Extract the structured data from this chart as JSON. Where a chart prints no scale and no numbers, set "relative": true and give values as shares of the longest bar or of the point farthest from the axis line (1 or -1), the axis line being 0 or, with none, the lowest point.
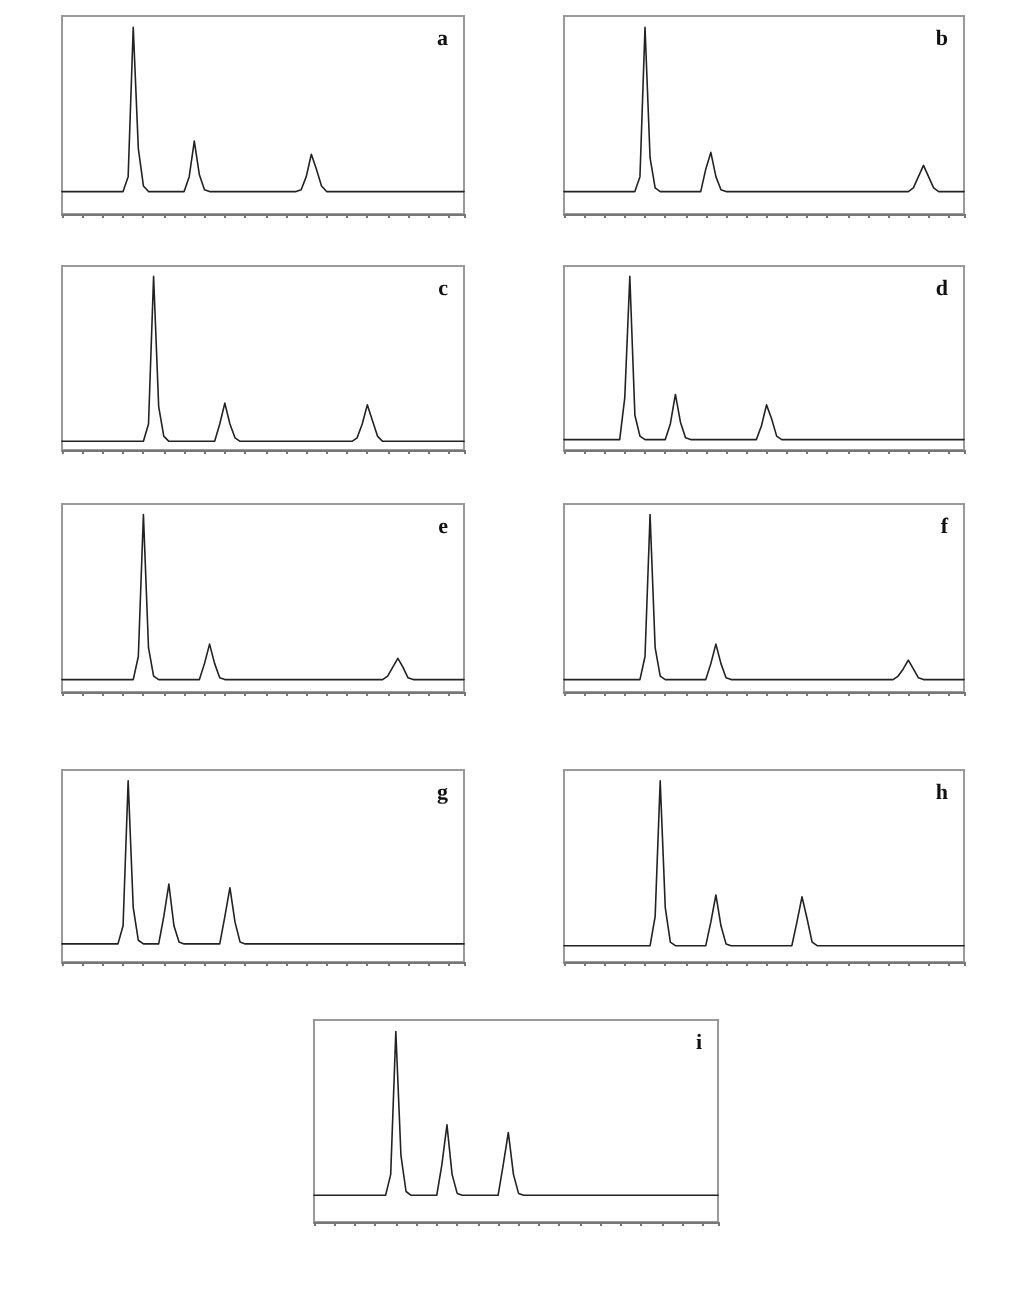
{
  "chart_data": [
    {
      "type": "line",
      "title": "a",
      "relative": true,
      "color": "#222222",
      "categories": [
        null,
        null,
        null,
        null,
        null,
        null,
        null,
        null,
        null,
        null,
        null,
        null,
        null,
        null,
        null,
        null,
        null,
        null,
        null,
        null,
        null,
        null,
        null,
        null,
        null,
        null,
        null,
        null,
        null,
        null,
        null,
        null,
        null,
        null,
        null,
        null,
        null,
        null,
        null,
        null,
        null,
        null,
        null,
        null,
        null,
        null,
        null,
        null,
        null,
        null,
        null,
        null,
        null,
        null,
        null,
        null,
        null,
        null,
        null,
        null,
        null,
        null,
        null,
        null,
        null,
        null,
        null,
        null,
        null,
        null,
        null,
        null,
        null,
        null,
        null,
        null,
        null,
        null,
        null,
        null
      ],
      "values": [
        0.12,
        0.12,
        0.12,
        0.12,
        0.12,
        0.12,
        0.12,
        0.12,
        0.12,
        0.12,
        0.12,
        0.12,
        0.12,
        0.2,
        1,
        0.35,
        0.15,
        0.12,
        0.12,
        0.12,
        0.12,
        0.12,
        0.12,
        0.12,
        0.12,
        0.2,
        0.39,
        0.21,
        0.13,
        0.12,
        0.12,
        0.12,
        0.12,
        0.12,
        0.12,
        0.12,
        0.12,
        0.12,
        0.12,
        0.12,
        0.12,
        0.12,
        0.12,
        0.12,
        0.12,
        0.12,
        0.12,
        0.13,
        0.2,
        0.32,
        0.24,
        0.15,
        0.12,
        0.12,
        0.12,
        0.12,
        0.12,
        0.12,
        0.12,
        0.12,
        0.12,
        0.12,
        0.12,
        0.12,
        0.12,
        0.12,
        0.12,
        0.12,
        0.12,
        0.12,
        0.12,
        0.12,
        0.12,
        0.12,
        0.12,
        0.12,
        0.12,
        0.12,
        0.12,
        0.12
      ]
    },
    {
      "type": "line",
      "title": "b",
      "relative": true,
      "color": "#222222",
      "categories": [
        null,
        null,
        null,
        null,
        null,
        null,
        null,
        null,
        null,
        null,
        null,
        null,
        null,
        null,
        null,
        null,
        null,
        null,
        null,
        null,
        null,
        null,
        null,
        null,
        null,
        null,
        null,
        null,
        null,
        null,
        null,
        null,
        null,
        null,
        null,
        null,
        null,
        null,
        null,
        null,
        null,
        null,
        null,
        null,
        null,
        null,
        null,
        null,
        null,
        null,
        null,
        null,
        null,
        null,
        null,
        null,
        null,
        null,
        null,
        null,
        null,
        null,
        null,
        null,
        null,
        null,
        null,
        null,
        null,
        null,
        null,
        null,
        null,
        null,
        null,
        null,
        null,
        null,
        null,
        null
      ],
      "values": [
        0.12,
        0.12,
        0.12,
        0.12,
        0.12,
        0.12,
        0.12,
        0.12,
        0.12,
        0.12,
        0.12,
        0.12,
        0.12,
        0.12,
        0.12,
        0.2,
        1,
        0.3,
        0.14,
        0.12,
        0.12,
        0.12,
        0.12,
        0.12,
        0.12,
        0.12,
        0.12,
        0.12,
        0.24,
        0.33,
        0.2,
        0.13,
        0.12,
        0.12,
        0.12,
        0.12,
        0.12,
        0.12,
        0.12,
        0.12,
        0.12,
        0.12,
        0.12,
        0.12,
        0.12,
        0.12,
        0.12,
        0.12,
        0.12,
        0.12,
        0.12,
        0.12,
        0.12,
        0.12,
        0.12,
        0.12,
        0.12,
        0.12,
        0.12,
        0.12,
        0.12,
        0.12,
        0.12,
        0.12,
        0.12,
        0.12,
        0.12,
        0.12,
        0.12,
        0.14,
        0.2,
        0.26,
        0.2,
        0.14,
        0.12,
        0.12,
        0.12,
        0.12,
        0.12,
        0.12
      ]
    },
    {
      "type": "line",
      "title": "c",
      "relative": true,
      "color": "#222222",
      "categories": [
        null,
        null,
        null,
        null,
        null,
        null,
        null,
        null,
        null,
        null,
        null,
        null,
        null,
        null,
        null,
        null,
        null,
        null,
        null,
        null,
        null,
        null,
        null,
        null,
        null,
        null,
        null,
        null,
        null,
        null,
        null,
        null,
        null,
        null,
        null,
        null,
        null,
        null,
        null,
        null,
        null,
        null,
        null,
        null,
        null,
        null,
        null,
        null,
        null,
        null,
        null,
        null,
        null,
        null,
        null,
        null,
        null,
        null,
        null,
        null,
        null,
        null,
        null,
        null,
        null,
        null,
        null,
        null,
        null,
        null,
        null,
        null,
        null,
        null,
        null,
        null,
        null,
        null,
        null,
        null
      ],
      "values": [
        0.05,
        0.05,
        0.05,
        0.05,
        0.05,
        0.05,
        0.05,
        0.05,
        0.05,
        0.05,
        0.05,
        0.05,
        0.05,
        0.05,
        0.05,
        0.05,
        0.05,
        0.15,
        1,
        0.25,
        0.08,
        0.05,
        0.05,
        0.05,
        0.05,
        0.05,
        0.05,
        0.05,
        0.05,
        0.05,
        0.05,
        0.15,
        0.27,
        0.15,
        0.07,
        0.05,
        0.05,
        0.05,
        0.05,
        0.05,
        0.05,
        0.05,
        0.05,
        0.05,
        0.05,
        0.05,
        0.05,
        0.05,
        0.05,
        0.05,
        0.05,
        0.05,
        0.05,
        0.05,
        0.05,
        0.05,
        0.05,
        0.05,
        0.07,
        0.15,
        0.26,
        0.17,
        0.08,
        0.05,
        0.05,
        0.05,
        0.05,
        0.05,
        0.05,
        0.05,
        0.05,
        0.05,
        0.05,
        0.05,
        0.05,
        0.05,
        0.05,
        0.05,
        0.05,
        0.05
      ]
    },
    {
      "type": "line",
      "title": "d",
      "relative": true,
      "color": "#222222",
      "categories": [
        null,
        null,
        null,
        null,
        null,
        null,
        null,
        null,
        null,
        null,
        null,
        null,
        null,
        null,
        null,
        null,
        null,
        null,
        null,
        null,
        null,
        null,
        null,
        null,
        null,
        null,
        null,
        null,
        null,
        null,
        null,
        null,
        null,
        null,
        null,
        null,
        null,
        null,
        null,
        null,
        null,
        null,
        null,
        null,
        null,
        null,
        null,
        null,
        null,
        null,
        null,
        null,
        null,
        null,
        null,
        null,
        null,
        null,
        null,
        null,
        null,
        null,
        null,
        null,
        null,
        null,
        null,
        null,
        null,
        null,
        null,
        null,
        null,
        null,
        null,
        null,
        null,
        null,
        null,
        null
      ],
      "values": [
        0.06,
        0.06,
        0.06,
        0.06,
        0.06,
        0.06,
        0.06,
        0.06,
        0.06,
        0.06,
        0.06,
        0.06,
        0.3,
        1,
        0.2,
        0.08,
        0.06,
        0.06,
        0.06,
        0.06,
        0.06,
        0.15,
        0.32,
        0.16,
        0.07,
        0.06,
        0.06,
        0.06,
        0.06,
        0.06,
        0.06,
        0.06,
        0.06,
        0.06,
        0.06,
        0.06,
        0.06,
        0.06,
        0.06,
        0.14,
        0.26,
        0.18,
        0.08,
        0.06,
        0.06,
        0.06,
        0.06,
        0.06,
        0.06,
        0.06,
        0.06,
        0.06,
        0.06,
        0.06,
        0.06,
        0.06,
        0.06,
        0.06,
        0.06,
        0.06,
        0.06,
        0.06,
        0.06,
        0.06,
        0.06,
        0.06,
        0.06,
        0.06,
        0.06,
        0.06,
        0.06,
        0.06,
        0.06,
        0.06,
        0.06,
        0.06,
        0.06,
        0.06,
        0.06,
        0.06
      ]
    },
    {
      "type": "line",
      "title": "e",
      "relative": true,
      "color": "#222222",
      "categories": [
        null,
        null,
        null,
        null,
        null,
        null,
        null,
        null,
        null,
        null,
        null,
        null,
        null,
        null,
        null,
        null,
        null,
        null,
        null,
        null,
        null,
        null,
        null,
        null,
        null,
        null,
        null,
        null,
        null,
        null,
        null,
        null,
        null,
        null,
        null,
        null,
        null,
        null,
        null,
        null,
        null,
        null,
        null,
        null,
        null,
        null,
        null,
        null,
        null,
        null,
        null,
        null,
        null,
        null,
        null,
        null,
        null,
        null,
        null,
        null,
        null,
        null,
        null,
        null,
        null,
        null,
        null,
        null,
        null,
        null,
        null,
        null,
        null,
        null,
        null,
        null,
        null,
        null,
        null,
        null
      ],
      "values": [
        0.07,
        0.07,
        0.07,
        0.07,
        0.07,
        0.07,
        0.07,
        0.07,
        0.07,
        0.07,
        0.07,
        0.07,
        0.07,
        0.07,
        0.07,
        0.2,
        1,
        0.25,
        0.09,
        0.07,
        0.07,
        0.07,
        0.07,
        0.07,
        0.07,
        0.07,
        0.07,
        0.07,
        0.16,
        0.27,
        0.16,
        0.08,
        0.07,
        0.07,
        0.07,
        0.07,
        0.07,
        0.07,
        0.07,
        0.07,
        0.07,
        0.07,
        0.07,
        0.07,
        0.07,
        0.07,
        0.07,
        0.07,
        0.07,
        0.07,
        0.07,
        0.07,
        0.07,
        0.07,
        0.07,
        0.07,
        0.07,
        0.07,
        0.07,
        0.07,
        0.07,
        0.07,
        0.07,
        0.07,
        0.09,
        0.14,
        0.19,
        0.14,
        0.08,
        0.07,
        0.07,
        0.07,
        0.07,
        0.07,
        0.07,
        0.07,
        0.07,
        0.07,
        0.07,
        0.07
      ]
    },
    {
      "type": "line",
      "title": "f",
      "relative": true,
      "color": "#222222",
      "categories": [
        null,
        null,
        null,
        null,
        null,
        null,
        null,
        null,
        null,
        null,
        null,
        null,
        null,
        null,
        null,
        null,
        null,
        null,
        null,
        null,
        null,
        null,
        null,
        null,
        null,
        null,
        null,
        null,
        null,
        null,
        null,
        null,
        null,
        null,
        null,
        null,
        null,
        null,
        null,
        null,
        null,
        null,
        null,
        null,
        null,
        null,
        null,
        null,
        null,
        null,
        null,
        null,
        null,
        null,
        null,
        null,
        null,
        null,
        null,
        null,
        null,
        null,
        null,
        null,
        null,
        null,
        null,
        null,
        null,
        null,
        null,
        null,
        null,
        null,
        null,
        null,
        null,
        null,
        null,
        null
      ],
      "values": [
        0.07,
        0.07,
        0.07,
        0.07,
        0.07,
        0.07,
        0.07,
        0.07,
        0.07,
        0.07,
        0.07,
        0.07,
        0.07,
        0.07,
        0.07,
        0.07,
        0.2,
        1,
        0.25,
        0.09,
        0.07,
        0.07,
        0.07,
        0.07,
        0.07,
        0.07,
        0.07,
        0.07,
        0.07,
        0.16,
        0.27,
        0.16,
        0.08,
        0.07,
        0.07,
        0.07,
        0.07,
        0.07,
        0.07,
        0.07,
        0.07,
        0.07,
        0.07,
        0.07,
        0.07,
        0.07,
        0.07,
        0.07,
        0.07,
        0.07,
        0.07,
        0.07,
        0.07,
        0.07,
        0.07,
        0.07,
        0.07,
        0.07,
        0.07,
        0.07,
        0.07,
        0.07,
        0.07,
        0.07,
        0.07,
        0.07,
        0.09,
        0.13,
        0.18,
        0.13,
        0.08,
        0.07,
        0.07,
        0.07,
        0.07,
        0.07,
        0.07,
        0.07,
        0.07,
        0.07
      ]
    },
    {
      "type": "line",
      "title": "g",
      "relative": true,
      "color": "#222222",
      "categories": [
        null,
        null,
        null,
        null,
        null,
        null,
        null,
        null,
        null,
        null,
        null,
        null,
        null,
        null,
        null,
        null,
        null,
        null,
        null,
        null,
        null,
        null,
        null,
        null,
        null,
        null,
        null,
        null,
        null,
        null,
        null,
        null,
        null,
        null,
        null,
        null,
        null,
        null,
        null,
        null,
        null,
        null,
        null,
        null,
        null,
        null,
        null,
        null,
        null,
        null,
        null,
        null,
        null,
        null,
        null,
        null,
        null,
        null,
        null,
        null,
        null,
        null,
        null,
        null,
        null,
        null,
        null,
        null,
        null,
        null,
        null,
        null,
        null,
        null,
        null,
        null,
        null,
        null,
        null,
        null
      ],
      "values": [
        0.1,
        0.1,
        0.1,
        0.1,
        0.1,
        0.1,
        0.1,
        0.1,
        0.1,
        0.1,
        0.1,
        0.1,
        0.2,
        1,
        0.3,
        0.12,
        0.1,
        0.1,
        0.1,
        0.1,
        0.25,
        0.43,
        0.2,
        0.11,
        0.1,
        0.1,
        0.1,
        0.1,
        0.1,
        0.1,
        0.1,
        0.1,
        0.25,
        0.41,
        0.22,
        0.11,
        0.1,
        0.1,
        0.1,
        0.1,
        0.1,
        0.1,
        0.1,
        0.1,
        0.1,
        0.1,
        0.1,
        0.1,
        0.1,
        0.1,
        0.1,
        0.1,
        0.1,
        0.1,
        0.1,
        0.1,
        0.1,
        0.1,
        0.1,
        0.1,
        0.1,
        0.1,
        0.1,
        0.1,
        0.1,
        0.1,
        0.1,
        0.1,
        0.1,
        0.1,
        0.1,
        0.1,
        0.1,
        0.1,
        0.1,
        0.1,
        0.1,
        0.1,
        0.1,
        0.1
      ]
    },
    {
      "type": "line",
      "title": "h",
      "relative": true,
      "color": "#222222",
      "categories": [
        null,
        null,
        null,
        null,
        null,
        null,
        null,
        null,
        null,
        null,
        null,
        null,
        null,
        null,
        null,
        null,
        null,
        null,
        null,
        null,
        null,
        null,
        null,
        null,
        null,
        null,
        null,
        null,
        null,
        null,
        null,
        null,
        null,
        null,
        null,
        null,
        null,
        null,
        null,
        null,
        null,
        null,
        null,
        null,
        null,
        null,
        null,
        null,
        null,
        null,
        null,
        null,
        null,
        null,
        null,
        null,
        null,
        null,
        null,
        null,
        null,
        null,
        null,
        null,
        null,
        null,
        null,
        null,
        null,
        null,
        null,
        null,
        null,
        null,
        null,
        null,
        null,
        null,
        null,
        null
      ],
      "values": [
        0.09,
        0.09,
        0.09,
        0.09,
        0.09,
        0.09,
        0.09,
        0.09,
        0.09,
        0.09,
        0.09,
        0.09,
        0.09,
        0.09,
        0.09,
        0.09,
        0.09,
        0.09,
        0.25,
        1,
        0.3,
        0.11,
        0.09,
        0.09,
        0.09,
        0.09,
        0.09,
        0.09,
        0.09,
        0.22,
        0.37,
        0.2,
        0.1,
        0.09,
        0.09,
        0.09,
        0.09,
        0.09,
        0.09,
        0.09,
        0.09,
        0.09,
        0.09,
        0.09,
        0.09,
        0.09,
        0.22,
        0.36,
        0.24,
        0.11,
        0.09,
        0.09,
        0.09,
        0.09,
        0.09,
        0.09,
        0.09,
        0.09,
        0.09,
        0.09,
        0.09,
        0.09,
        0.09,
        0.09,
        0.09,
        0.09,
        0.09,
        0.09,
        0.09,
        0.09,
        0.09,
        0.09,
        0.09,
        0.09,
        0.09,
        0.09,
        0.09,
        0.09,
        0.09,
        0.09
      ]
    },
    {
      "type": "line",
      "title": "i",
      "relative": true,
      "color": "#222222",
      "categories": [
        null,
        null,
        null,
        null,
        null,
        null,
        null,
        null,
        null,
        null,
        null,
        null,
        null,
        null,
        null,
        null,
        null,
        null,
        null,
        null,
        null,
        null,
        null,
        null,
        null,
        null,
        null,
        null,
        null,
        null,
        null,
        null,
        null,
        null,
        null,
        null,
        null,
        null,
        null,
        null,
        null,
        null,
        null,
        null,
        null,
        null,
        null,
        null,
        null,
        null,
        null,
        null,
        null,
        null,
        null,
        null,
        null,
        null,
        null,
        null,
        null,
        null,
        null,
        null,
        null,
        null,
        null,
        null,
        null,
        null,
        null,
        null,
        null,
        null,
        null,
        null,
        null,
        null,
        null,
        null
      ],
      "values": [
        0.14,
        0.14,
        0.14,
        0.14,
        0.14,
        0.14,
        0.14,
        0.14,
        0.14,
        0.14,
        0.14,
        0.14,
        0.14,
        0.14,
        0.14,
        0.25,
        1,
        0.35,
        0.16,
        0.14,
        0.14,
        0.14,
        0.14,
        0.14,
        0.14,
        0.3,
        0.51,
        0.25,
        0.15,
        0.14,
        0.14,
        0.14,
        0.14,
        0.14,
        0.14,
        0.14,
        0.14,
        0.3,
        0.47,
        0.25,
        0.15,
        0.14,
        0.14,
        0.14,
        0.14,
        0.14,
        0.14,
        0.14,
        0.14,
        0.14,
        0.14,
        0.14,
        0.14,
        0.14,
        0.14,
        0.14,
        0.14,
        0.14,
        0.14,
        0.14,
        0.14,
        0.14,
        0.14,
        0.14,
        0.14,
        0.14,
        0.14,
        0.14,
        0.14,
        0.14,
        0.14,
        0.14,
        0.14,
        0.14,
        0.14,
        0.14,
        0.14,
        0.14,
        0.14,
        0.14
      ]
    }
  ]
}
